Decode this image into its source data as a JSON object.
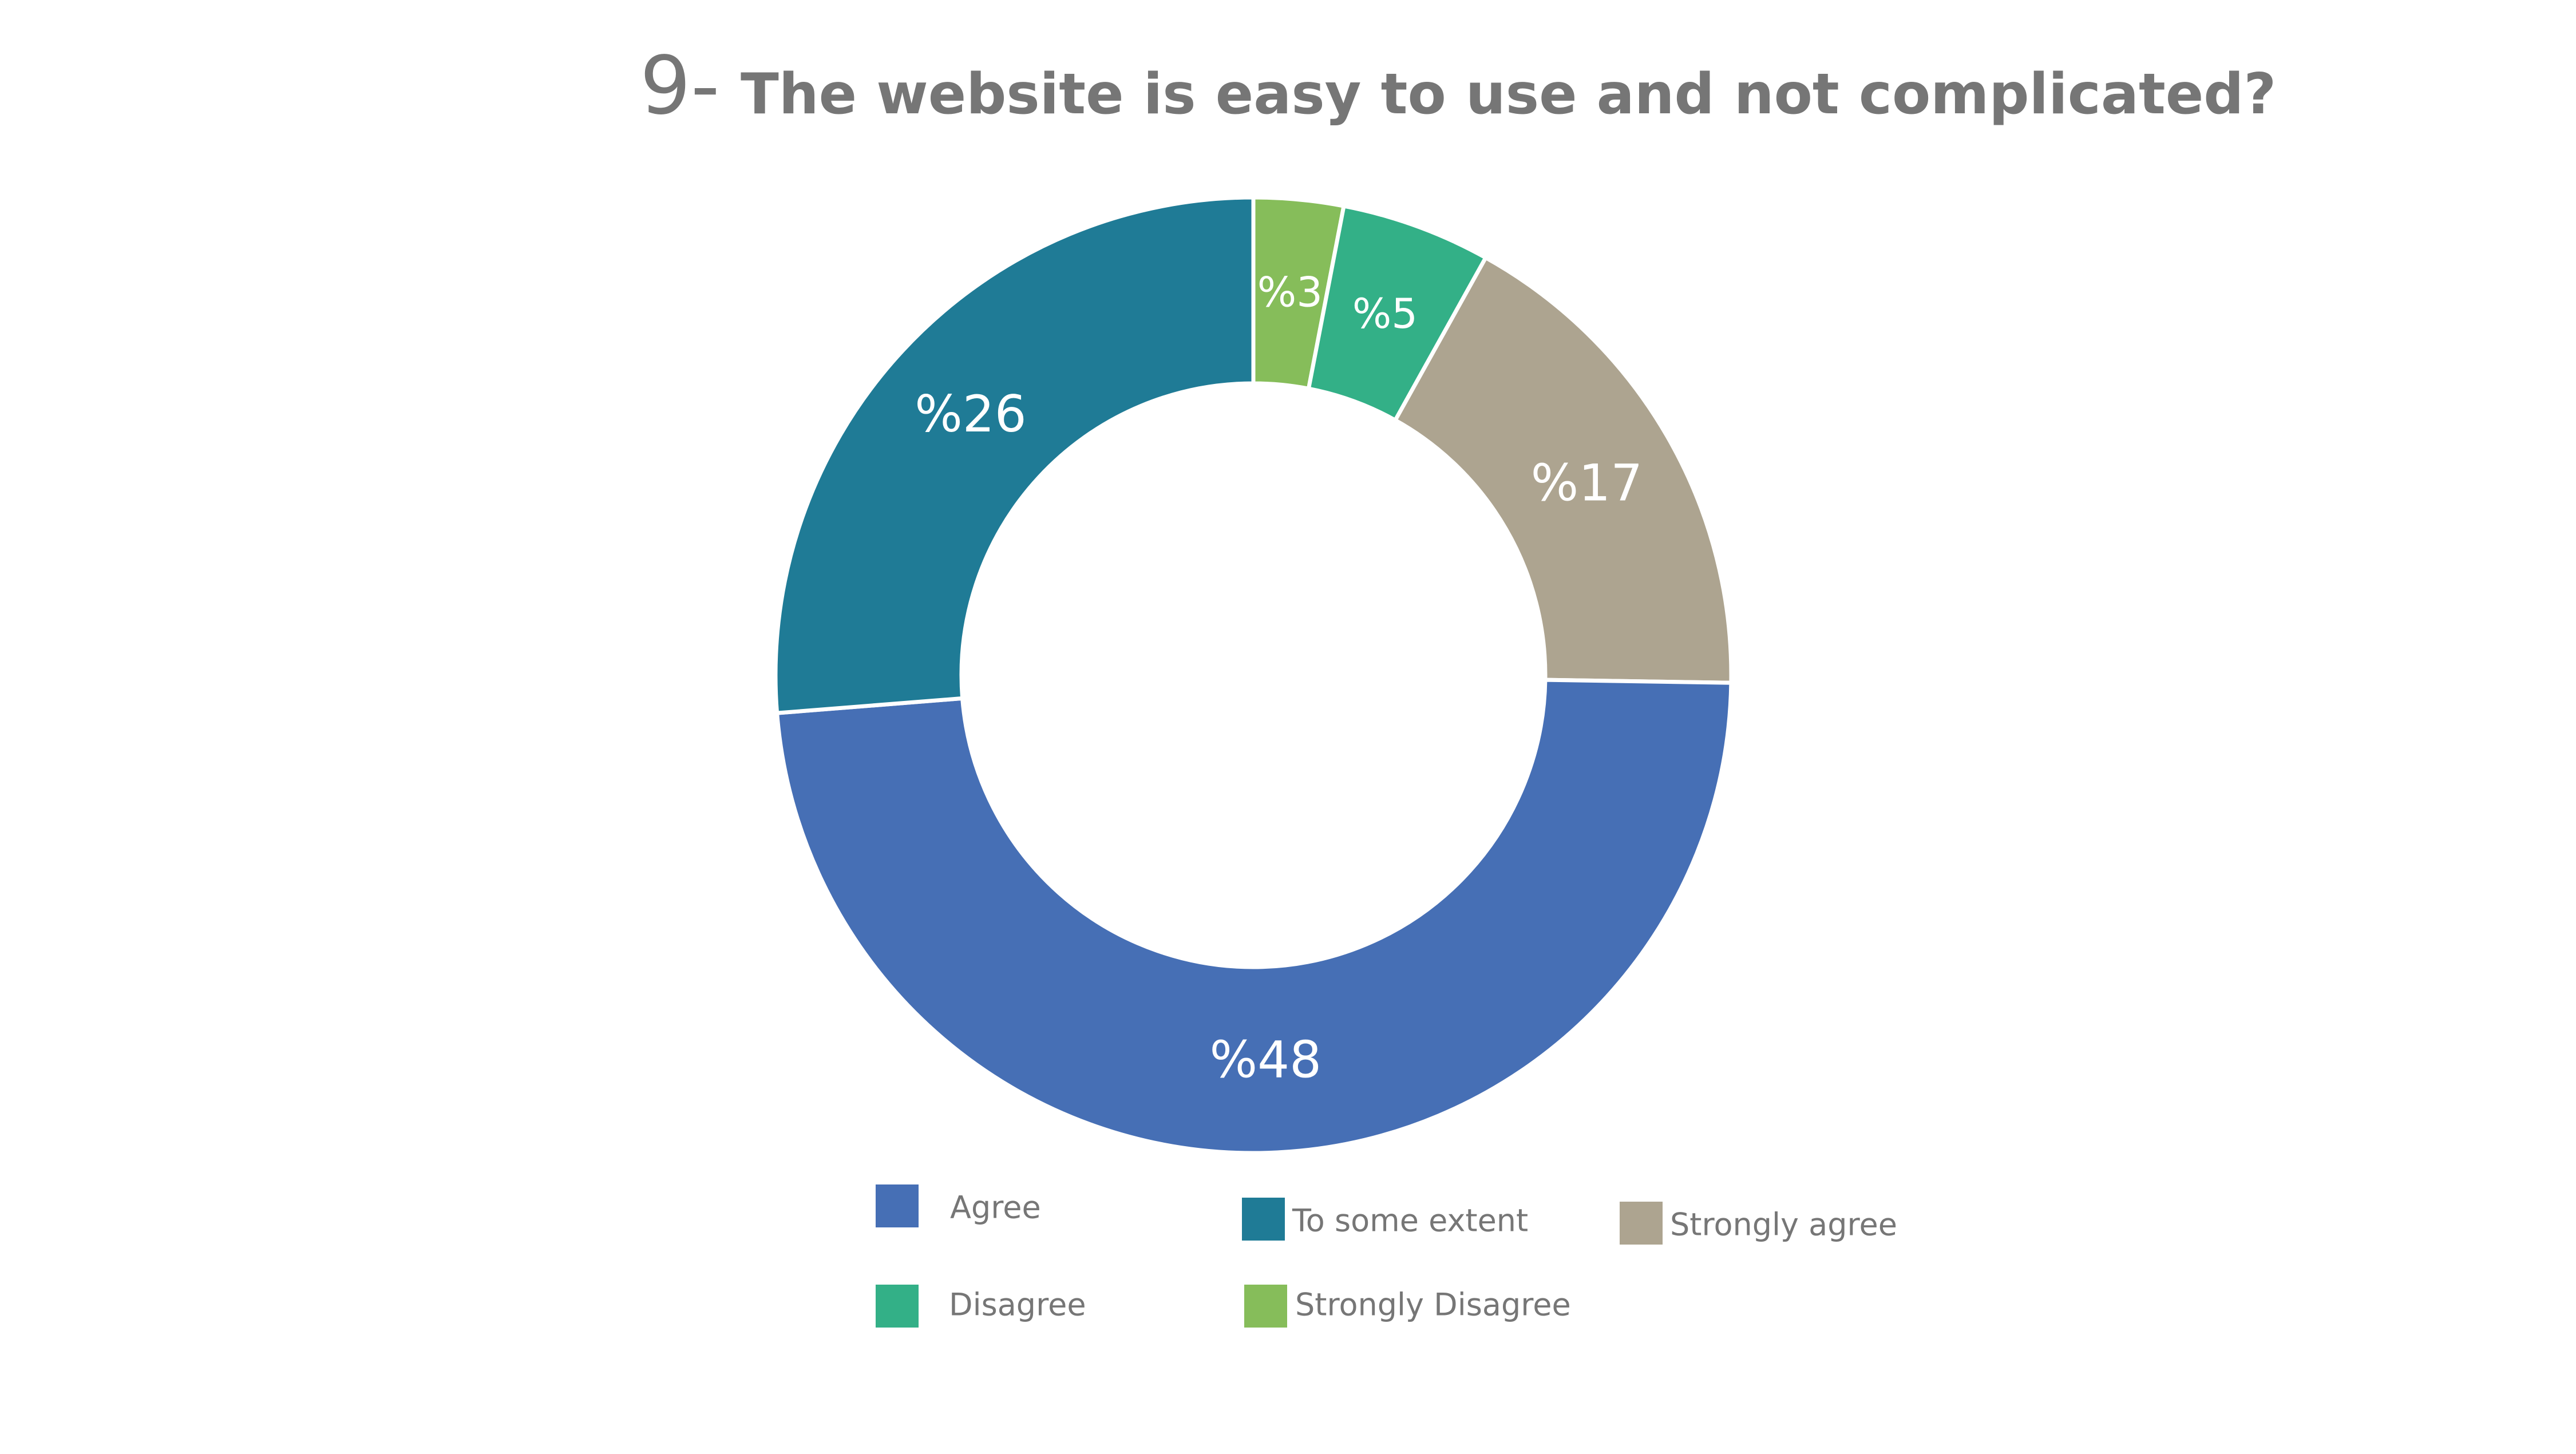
{
  "chart_data": {
    "type": "pie",
    "title_number": "9-",
    "title": "The website is easy to use and not complicated?",
    "slices": [
      {
        "name": "Strongly Disagree",
        "value": 3,
        "label": "%3",
        "color": "#86BD5A"
      },
      {
        "name": "Disagree",
        "value": 5,
        "label": "%5",
        "color": "#33B087"
      },
      {
        "name": "Strongly agree",
        "value": 17,
        "label": "%17",
        "color": "#ADA490"
      },
      {
        "name": "Agree",
        "value": 48,
        "label": "%48",
        "color": "#466FB5"
      },
      {
        "name": "To some extent",
        "value": 26,
        "label": "%26",
        "color": "#1F7B96"
      }
    ],
    "start_angle_deg": 0,
    "direction": "clockwise",
    "legend": {
      "position": "bottom",
      "entries": [
        "Agree",
        "To some extent",
        "Strongly agree",
        "Disagree",
        "Strongly Disagree"
      ]
    }
  },
  "colors": {
    "title": "#767676",
    "legend_text": "#767676",
    "slice_label": "#FFFFFF",
    "separator": "#FFFFFF",
    "background": "#FFFFFF"
  }
}
